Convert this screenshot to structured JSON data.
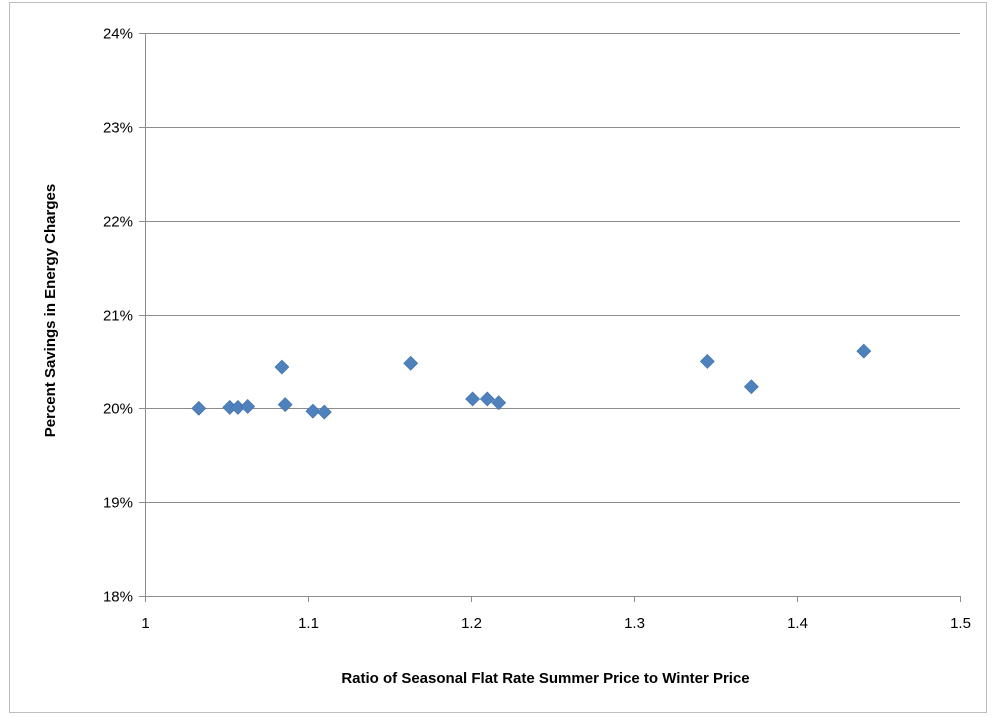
{
  "chart_data": {
    "type": "scatter",
    "title": "",
    "xlabel": "Ratio of Seasonal Flat Rate Summer Price to Winter Price",
    "ylabel": "Percent Savings in Energy Charges",
    "xlim": [
      1,
      1.5
    ],
    "ylim": [
      0.18,
      0.24
    ],
    "x_ticks": [
      1,
      1.1,
      1.2,
      1.3,
      1.4,
      1.5
    ],
    "x_tick_labels": [
      "1",
      "1.1",
      "1.2",
      "1.3",
      "1.4",
      "1.5"
    ],
    "y_ticks": [
      0.18,
      0.19,
      0.2,
      0.21,
      0.22,
      0.23,
      0.24
    ],
    "y_tick_labels": [
      "18%",
      "19%",
      "20%",
      "21%",
      "22%",
      "23%",
      "24%"
    ],
    "grid": "horizontal",
    "legend": "none",
    "marker": "diamond",
    "color": "#4f81bd",
    "points": [
      {
        "x": 1.033,
        "y": 0.2
      },
      {
        "x": 1.052,
        "y": 0.2001
      },
      {
        "x": 1.057,
        "y": 0.2001
      },
      {
        "x": 1.063,
        "y": 0.2002
      },
      {
        "x": 1.084,
        "y": 0.2044
      },
      {
        "x": 1.086,
        "y": 0.2004
      },
      {
        "x": 1.103,
        "y": 0.1997
      },
      {
        "x": 1.11,
        "y": 0.1996
      },
      {
        "x": 1.163,
        "y": 0.2048
      },
      {
        "x": 1.201,
        "y": 0.201
      },
      {
        "x": 1.21,
        "y": 0.201
      },
      {
        "x": 1.217,
        "y": 0.2006
      },
      {
        "x": 1.345,
        "y": 0.205
      },
      {
        "x": 1.372,
        "y": 0.2023
      },
      {
        "x": 1.441,
        "y": 0.2061
      }
    ]
  }
}
